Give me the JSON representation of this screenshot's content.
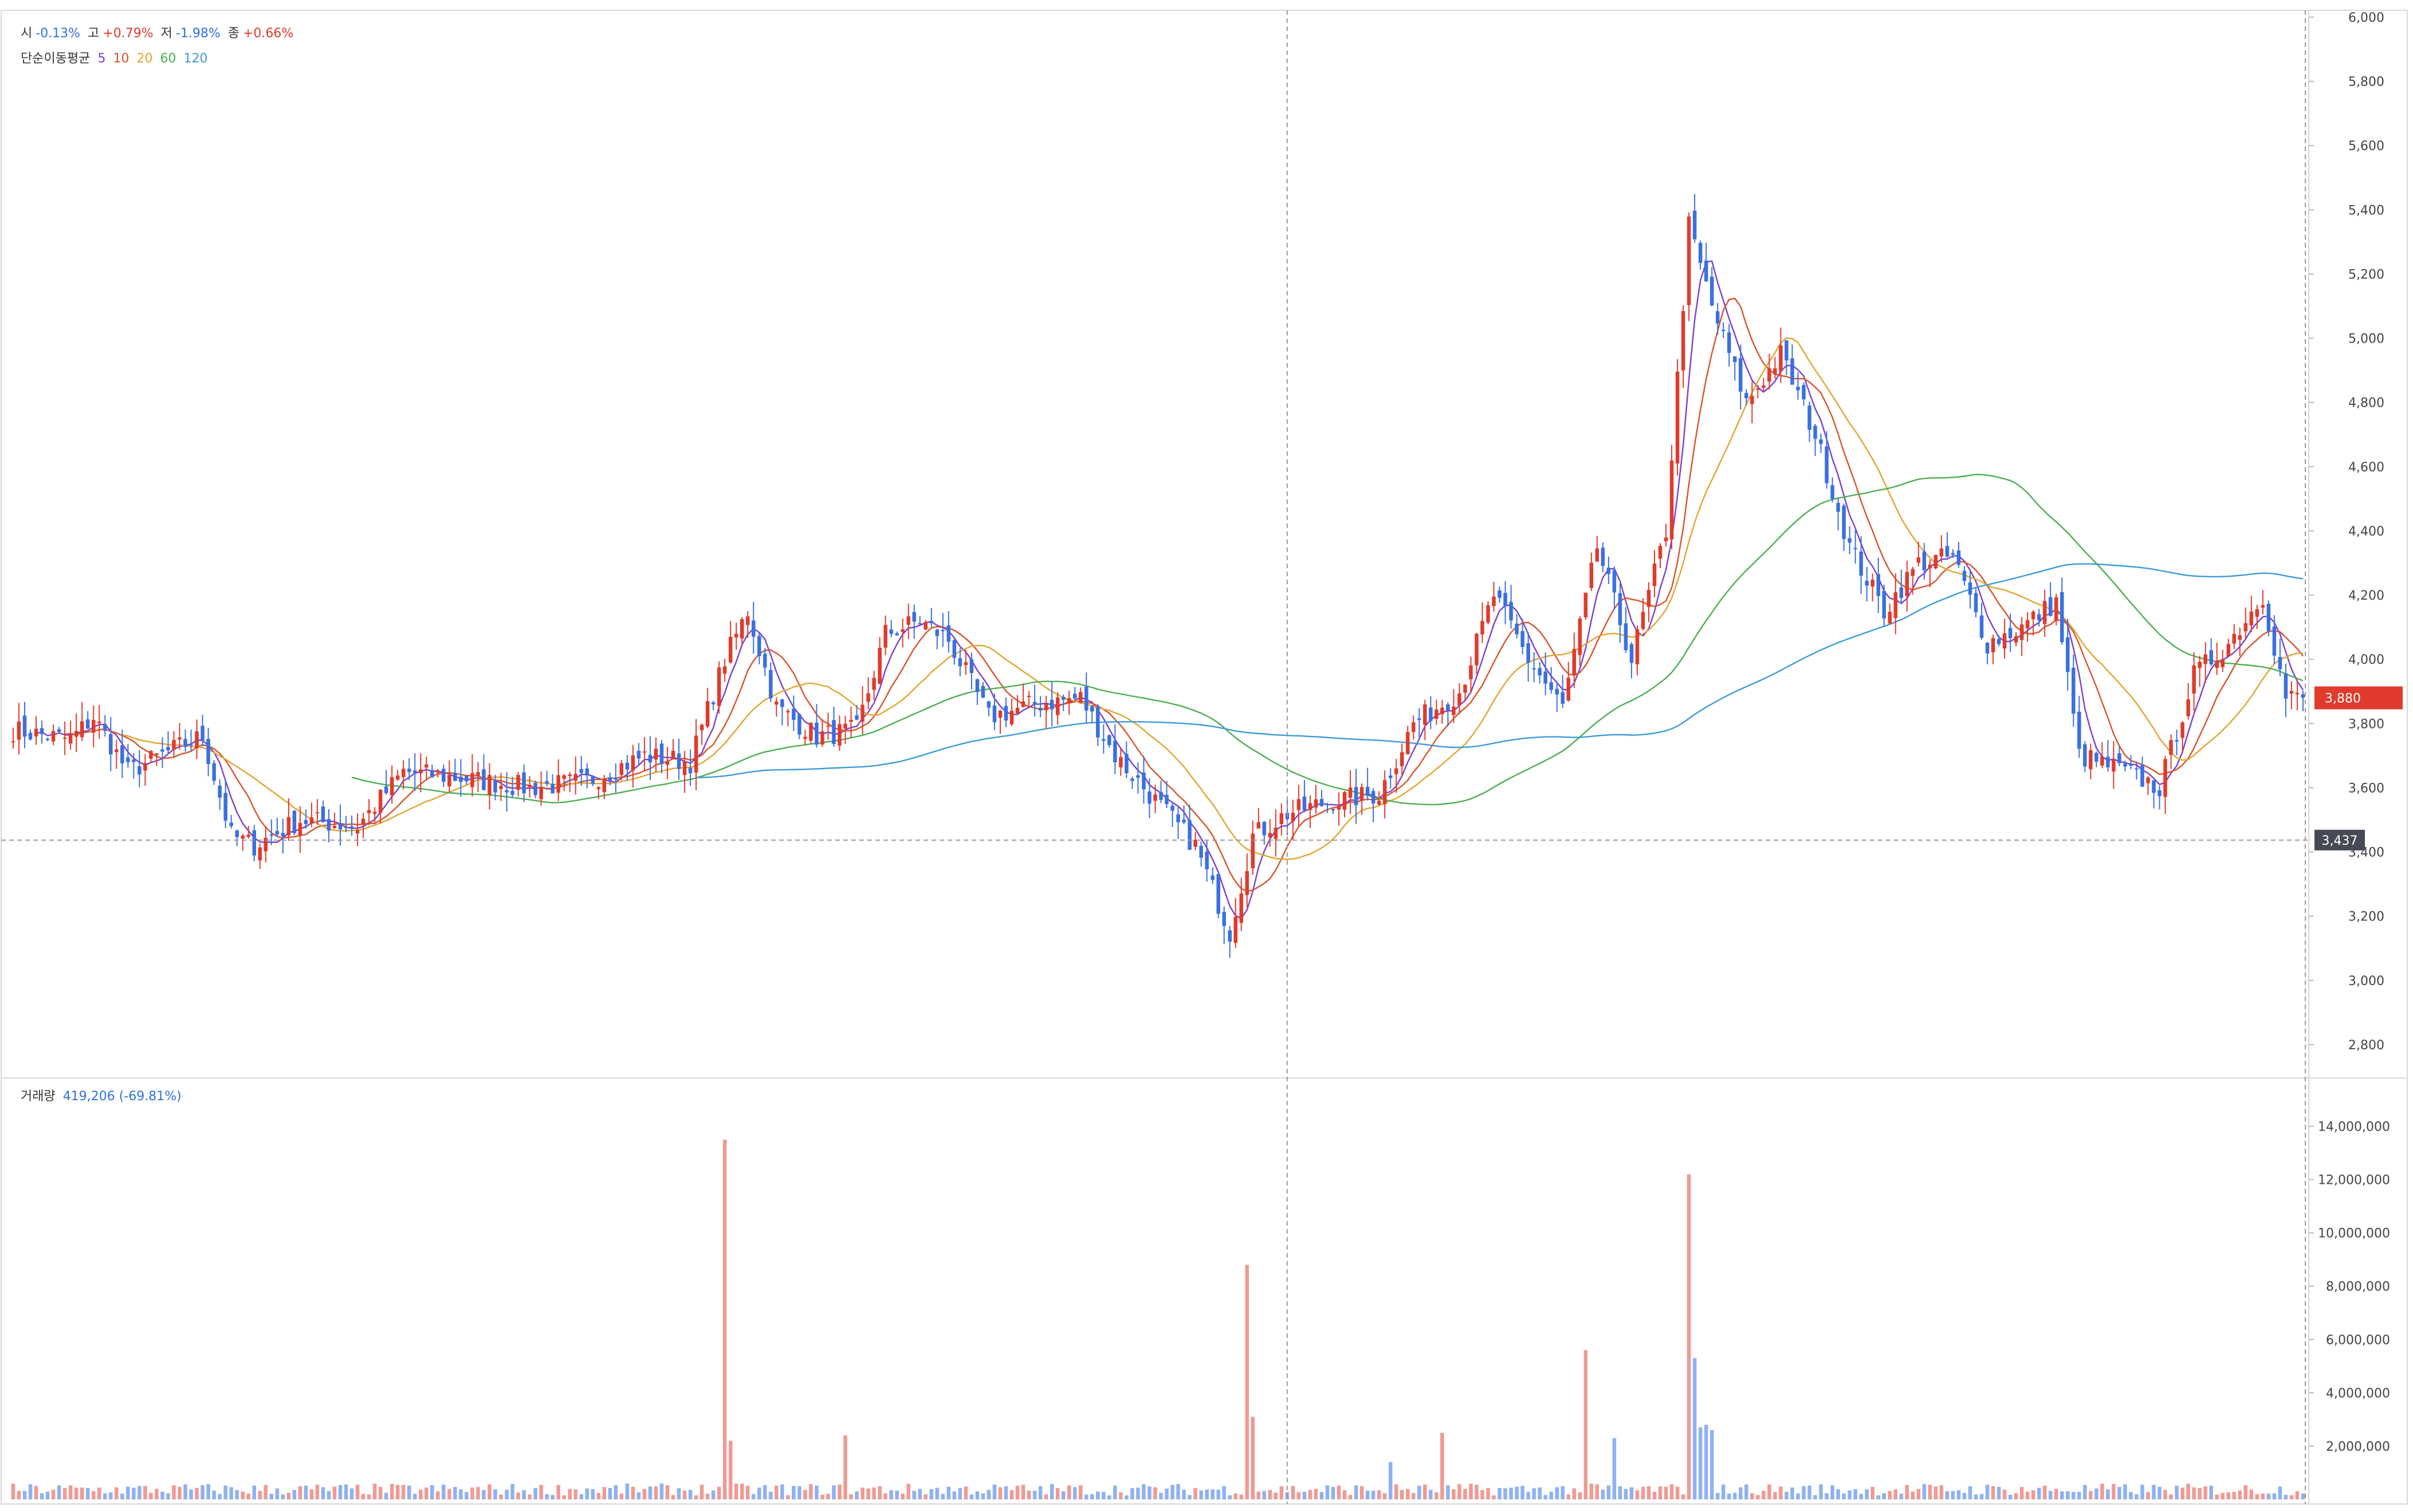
{
  "legend": {
    "ohlc": [
      {
        "label": "시",
        "value": "-0.13%",
        "dir": "dn"
      },
      {
        "label": "고",
        "value": "+0.79%",
        "dir": "up"
      },
      {
        "label": "저",
        "value": "-1.98%",
        "dir": "dn"
      },
      {
        "label": "종",
        "value": "+0.66%",
        "dir": "up"
      }
    ],
    "ma_title": "단순이동평균",
    "ma_periods": [
      {
        "label": "5",
        "color": "#7b3fd1"
      },
      {
        "label": "10",
        "color": "#d9532b"
      },
      {
        "label": "20",
        "color": "#e3a42f"
      },
      {
        "label": "60",
        "color": "#4caf50"
      },
      {
        "label": "120",
        "color": "#3b9ad9"
      }
    ],
    "volume_title": "거래량",
    "volume_value": "419,206 (-69.81%)"
  },
  "colors": {
    "up": "#e03b2c",
    "down": "#3a70e0",
    "vol_up": "#ef9a93",
    "vol_down": "#8fb1ef"
  },
  "chart_data": {
    "type": "candlestick",
    "price_axis": {
      "min": 2700,
      "max": 6000,
      "ticks": [
        2800,
        3000,
        3200,
        3400,
        3600,
        3800,
        4000,
        4200,
        4400,
        4600,
        4800,
        5000,
        5200,
        5400,
        5600,
        5800,
        6000
      ],
      "tick_labels": [
        "2,800",
        "3,000",
        "3,200",
        "3,400",
        "3,600",
        "3,800",
        "4,000",
        "4,200",
        "4,400",
        "4,600",
        "4,800",
        "5,000",
        "5,200",
        "5,400",
        "5,600",
        "5,800",
        "6,000"
      ]
    },
    "volume_axis": {
      "min": 0,
      "max": 15000000,
      "ticks": [
        2000000,
        4000000,
        6000000,
        8000000,
        10000000,
        12000000,
        14000000
      ],
      "tick_labels": [
        "2,000,000",
        "4,000,000",
        "6,000,000",
        "8,000,000",
        "10,000,000",
        "12,000,000",
        "14,000,000"
      ]
    },
    "last_price": {
      "value": 3880,
      "label": "3,880"
    },
    "crosshair_price": {
      "value": 3437,
      "label": "3,437"
    },
    "close_anchors": [
      [
        0,
        3780
      ],
      [
        10,
        3750
      ],
      [
        14,
        3820
      ],
      [
        20,
        3650
      ],
      [
        28,
        3720
      ],
      [
        33,
        3760
      ],
      [
        38,
        3450
      ],
      [
        42,
        3420
      ],
      [
        50,
        3500
      ],
      [
        60,
        3480
      ],
      [
        68,
        3650
      ],
      [
        78,
        3630
      ],
      [
        90,
        3600
      ],
      [
        100,
        3620
      ],
      [
        110,
        3700
      ],
      [
        118,
        3680
      ],
      [
        124,
        4000
      ],
      [
        128,
        4150
      ],
      [
        133,
        3850
      ],
      [
        140,
        3760
      ],
      [
        147,
        3780
      ],
      [
        152,
        4080
      ],
      [
        158,
        4120
      ],
      [
        163,
        4060
      ],
      [
        170,
        3820
      ],
      [
        178,
        3860
      ],
      [
        186,
        3880
      ],
      [
        192,
        3700
      ],
      [
        198,
        3580
      ],
      [
        206,
        3420
      ],
      [
        212,
        3150
      ],
      [
        216,
        3450
      ],
      [
        222,
        3520
      ],
      [
        230,
        3560
      ],
      [
        238,
        3580
      ],
      [
        244,
        3800
      ],
      [
        252,
        3900
      ],
      [
        258,
        4200
      ],
      [
        264,
        4000
      ],
      [
        270,
        3850
      ],
      [
        276,
        4350
      ],
      [
        282,
        4000
      ],
      [
        288,
        4400
      ],
      [
        292,
        5350
      ],
      [
        296,
        5100
      ],
      [
        302,
        4800
      ],
      [
        308,
        4950
      ],
      [
        314,
        4700
      ],
      [
        320,
        4350
      ],
      [
        326,
        4150
      ],
      [
        332,
        4300
      ],
      [
        338,
        4320
      ],
      [
        344,
        4050
      ],
      [
        350,
        4100
      ],
      [
        356,
        4180
      ],
      [
        360,
        3700
      ],
      [
        368,
        3650
      ],
      [
        374,
        3600
      ],
      [
        380,
        3950
      ],
      [
        386,
        4050
      ],
      [
        392,
        4200
      ],
      [
        396,
        3880
      ]
    ],
    "volume_series": {
      "name": "거래량",
      "last": 419206,
      "change": "-69.81%"
    },
    "spikes": [
      [
        124,
        13500000
      ],
      [
        125,
        2200000
      ],
      [
        145,
        2400000
      ],
      [
        215,
        8800000
      ],
      [
        216,
        3100000
      ],
      [
        240,
        1400000
      ],
      [
        249,
        2500000
      ],
      [
        274,
        5600000
      ],
      [
        279,
        2300000
      ],
      [
        292,
        12200000
      ],
      [
        293,
        5300000
      ],
      [
        294,
        2700000
      ],
      [
        295,
        2800000
      ],
      [
        296,
        2600000
      ]
    ]
  }
}
